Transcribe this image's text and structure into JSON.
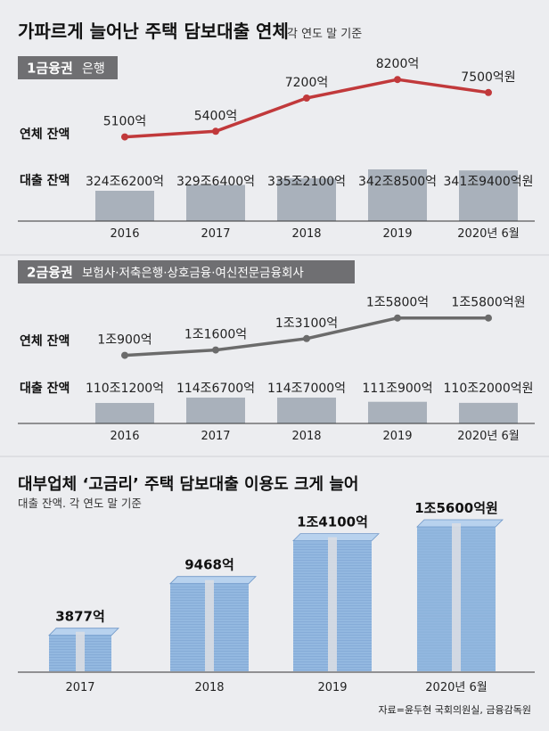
{
  "header": {
    "title": "가파르게 늘어난 주택 담보대출 연체",
    "subtitle": "각 연도 말 기준"
  },
  "colors": {
    "background": "#ecedf0",
    "badge_bg": "#6f6f72",
    "line_tier1": "#c1393b",
    "line_tier2": "#6b6b6b",
    "bar_gray": "#a9b1bb",
    "stack_blue": "#93b8e0",
    "stack_blue_dark": "#6e97c8"
  },
  "categories": [
    "2016",
    "2017",
    "2018",
    "2019",
    "2020년 6월"
  ],
  "tier1": {
    "badge": "1금융권",
    "badge_desc": "은행",
    "row_label_overdue": "연체 잔액",
    "row_label_loan": "대출 잔액",
    "overdue_labels": [
      "5100억",
      "5400억",
      "7200억",
      "8200억",
      "7500억원"
    ],
    "loan_labels": [
      "324조6200억",
      "329조6400억",
      "335조2100억",
      "342조8500억",
      "341조9400억원"
    ]
  },
  "tier2": {
    "badge": "2금융권",
    "badge_desc": "보험사·저축은행·상호금융·여신전문금융회사",
    "row_label_overdue": "연체 잔액",
    "row_label_loan": "대출 잔액",
    "overdue_labels": [
      "1조900억",
      "1조1600억",
      "1조3100억",
      "1조5800억",
      "1조5800억원"
    ],
    "loan_labels": [
      "110조1200억",
      "114조6700억",
      "114조7000억",
      "111조900억",
      "110조2000억원"
    ]
  },
  "section3": {
    "title": "대부업체 ‘고금리’ 주택 담보대출 이용도 크게 늘어",
    "subtitle": "대출 잔액. 각 연도 말 기준",
    "categories": [
      "2017",
      "2018",
      "2019",
      "2020년 6월"
    ],
    "labels": [
      "3877억",
      "9468억",
      "1조4100억",
      "1조5600억원"
    ]
  },
  "source": "자료=윤두현 국회의원실, 금융감독원",
  "chart_data": [
    {
      "type": "line",
      "title": "1금융권 은행 — 연체 잔액",
      "categories": [
        "2016",
        "2017",
        "2018",
        "2019",
        "2020년 6월"
      ],
      "series": [
        {
          "name": "연체 잔액",
          "unit": "억원",
          "values": [
            5100,
            5400,
            7200,
            8200,
            7500
          ]
        }
      ],
      "ylim": [
        4500,
        8500
      ]
    },
    {
      "type": "bar",
      "title": "1금융권 은행 — 대출 잔액",
      "categories": [
        "2016",
        "2017",
        "2018",
        "2019",
        "2020년 6월"
      ],
      "series": [
        {
          "name": "대출 잔액",
          "unit": "억원",
          "values": [
            3246200,
            3296400,
            3352100,
            3428500,
            3419400
          ]
        }
      ]
    },
    {
      "type": "line",
      "title": "2금융권 — 연체 잔액",
      "categories": [
        "2016",
        "2017",
        "2018",
        "2019",
        "2020년 6월"
      ],
      "series": [
        {
          "name": "연체 잔액",
          "unit": "억원",
          "values": [
            10900,
            11600,
            13100,
            15800,
            15800
          ]
        }
      ],
      "ylim": [
        10500,
        16000
      ]
    },
    {
      "type": "bar",
      "title": "2금융권 — 대출 잔액",
      "categories": [
        "2016",
        "2017",
        "2018",
        "2019",
        "2020년 6월"
      ],
      "series": [
        {
          "name": "대출 잔액",
          "unit": "억원",
          "values": [
            1101200,
            1146700,
            1147000,
            1110900,
            1102000
          ]
        }
      ]
    },
    {
      "type": "bar",
      "title": "대부업체 ‘고금리’ 주택 담보대출 이용도 크게 늘어",
      "categories": [
        "2017",
        "2018",
        "2019",
        "2020년 6월"
      ],
      "series": [
        {
          "name": "대출 잔액",
          "unit": "억원",
          "values": [
            3877,
            9468,
            14100,
            15600
          ]
        }
      ],
      "ylim": [
        0,
        15600
      ]
    }
  ]
}
